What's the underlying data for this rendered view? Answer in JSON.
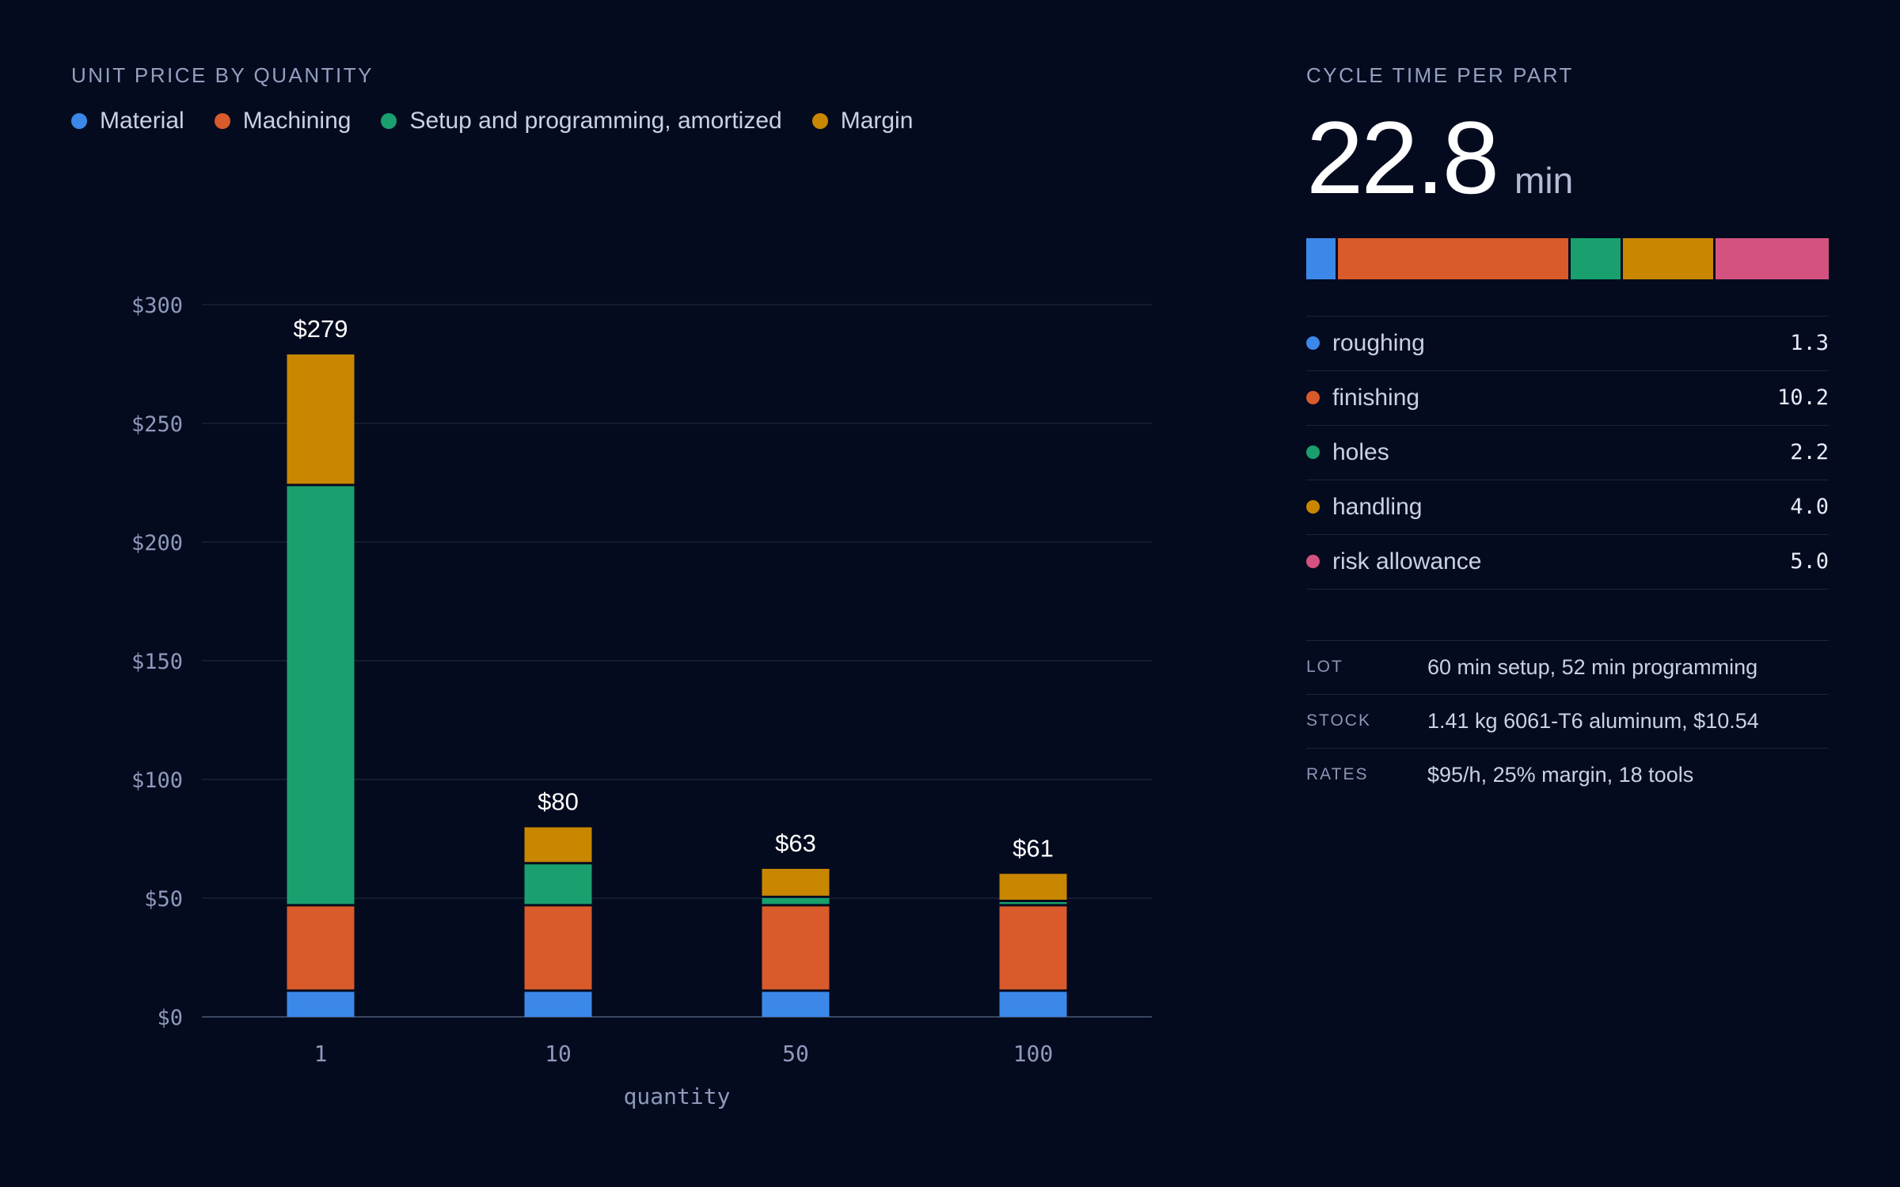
{
  "left_title": "UNIT PRICE BY QUANTITY",
  "legend": [
    {
      "label": "Material",
      "color": "#3b88e8"
    },
    {
      "label": "Machining",
      "color": "#d95a2b"
    },
    {
      "label": "Setup and programming, amortized",
      "color": "#19a06e"
    },
    {
      "label": "Margin",
      "color": "#c98700"
    }
  ],
  "chart_data": {
    "type": "bar",
    "stacked": true,
    "categories": [
      "1",
      "10",
      "50",
      "100"
    ],
    "series": [
      {
        "name": "Material",
        "color": "#3b88e8",
        "values": [
          10.54,
          10.54,
          10.54,
          10.54
        ]
      },
      {
        "name": "Machining",
        "color": "#d95a2b",
        "values": [
          36,
          36,
          36,
          36
        ]
      },
      {
        "name": "Setup and programming, amortized",
        "color": "#19a06e",
        "values": [
          177,
          17.7,
          3.5,
          1.8
        ]
      },
      {
        "name": "Margin",
        "color": "#c98700",
        "values": [
          55.5,
          15.6,
          12.3,
          11.9
        ]
      }
    ],
    "totals": [
      "$279",
      "$80",
      "$63",
      "$61"
    ],
    "xlabel": "quantity",
    "ylabel": "",
    "ylim": [
      0,
      300
    ],
    "yticks": [
      0,
      50,
      100,
      150,
      200,
      250,
      300
    ],
    "ytick_labels": [
      "$0",
      "$50",
      "$100",
      "$150",
      "$200",
      "$250",
      "$300"
    ],
    "grid": true
  },
  "cycle": {
    "title": "CYCLE TIME PER PART",
    "value": "22.8",
    "unit": "min",
    "items": [
      {
        "label": "roughing",
        "value": "1.3",
        "minutes": 1.3,
        "color": "#3b88e8"
      },
      {
        "label": "finishing",
        "value": "10.2",
        "minutes": 10.2,
        "color": "#d95a2b"
      },
      {
        "label": "holes",
        "value": "2.2",
        "minutes": 2.2,
        "color": "#19a06e"
      },
      {
        "label": "handling",
        "value": "4.0",
        "minutes": 4.0,
        "color": "#c98700"
      },
      {
        "label": "risk allowance",
        "value": "5.0",
        "minutes": 5.0,
        "color": "#d4527f"
      }
    ]
  },
  "meta": [
    {
      "key": "LOT",
      "value": "60 min setup, 52 min programming"
    },
    {
      "key": "STOCK",
      "value": "1.41 kg 6061-T6 aluminum, $10.54"
    },
    {
      "key": "RATES",
      "value": "$95/h, 25% margin, 18 tools"
    }
  ]
}
